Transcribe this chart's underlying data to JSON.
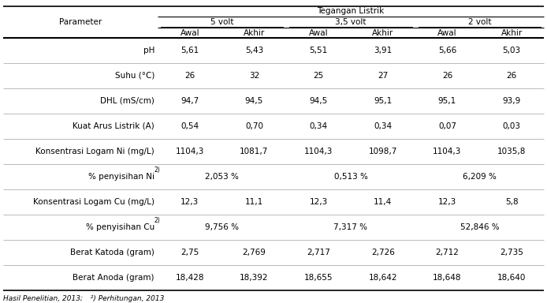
{
  "header_top": "Tegangan Listrik",
  "col_groups": [
    "5 volt",
    "3,5 volt",
    "2 volt"
  ],
  "col_sub": [
    "Awal",
    "Akhir",
    "Awal",
    "Akhir",
    "Awal",
    "Akhir"
  ],
  "row_label": "Parameter",
  "rows": [
    [
      "pH",
      "5,61",
      "5,43",
      "5,51",
      "3,91",
      "5,66",
      "5,03"
    ],
    [
      "Suhu (°C)",
      "26",
      "32",
      "25",
      "27",
      "26",
      "26"
    ],
    [
      "DHL (mS/cm)",
      "94,7",
      "94,5",
      "94,5",
      "95,1",
      "95,1",
      "93,9"
    ],
    [
      "Kuat Arus Listrik (A)",
      "0,54",
      "0,70",
      "0,34",
      "0,34",
      "0,07",
      "0,03"
    ],
    [
      "Konsentrasi Logam Ni (mg/L)",
      "1104,3",
      "1081,7",
      "1104,3",
      "1098,7",
      "1104,3",
      "1035,8"
    ],
    [
      "% penyisihan Ni",
      "2,053 %",
      "",
      "0,513 %",
      "",
      "6,209 %",
      ""
    ],
    [
      "Konsentrasi Logam Cu (mg/L)",
      "12,3",
      "11,1",
      "12,3",
      "11,4",
      "12,3",
      "5,8"
    ],
    [
      "% penyisihan Cu",
      "9,756 %",
      "",
      "7,317 %",
      "",
      "52,846 %",
      ""
    ],
    [
      "Berat Katoda (gram)",
      "2,75",
      "2,769",
      "2,717",
      "2,726",
      "2,712",
      "2,735"
    ],
    [
      "Berat Anoda (gram)",
      "18,428",
      "18,392",
      "18,655",
      "18,642",
      "18,648",
      "18,640"
    ]
  ],
  "merged_rows": [
    5,
    7
  ],
  "footnote1": "Hasil Penelitian, 2013;",
  "footnote2": "  ²) Perhitungan, 2013",
  "bg_color": "#ffffff",
  "text_color": "#000000",
  "font_size": 7.5,
  "font_size_footnote": 6.5
}
